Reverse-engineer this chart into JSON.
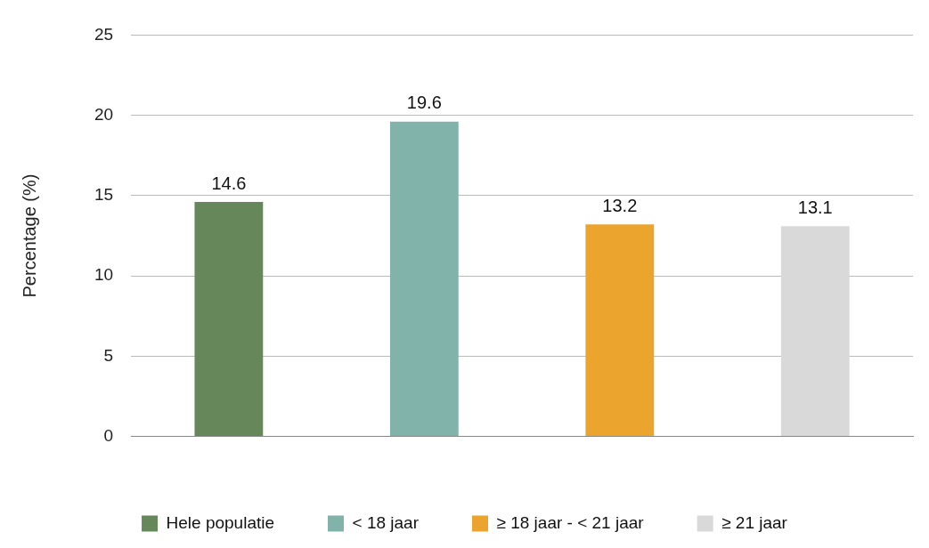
{
  "chart_data": {
    "type": "bar",
    "ylabel": "Percentage (%)",
    "categories": [
      null,
      null,
      null,
      null
    ],
    "series": [
      {
        "name": "Hele populatie",
        "color": "#66875a",
        "values": [
          14.6,
          null,
          null,
          null
        ]
      },
      {
        "name": "< 18 jaar",
        "color": "#82b3ab",
        "values": [
          null,
          19.6,
          null,
          null
        ]
      },
      {
        "name": "≥ 18 jaar - < 21 jaar",
        "color": "#eba52e",
        "values": [
          null,
          null,
          13.2,
          null
        ]
      },
      {
        "name": "≥ 21 jaar",
        "color": "#d9d9d9",
        "values": [
          null,
          null,
          null,
          13.1
        ]
      }
    ],
    "ylim": [
      0,
      25
    ],
    "yticks": [
      0,
      5,
      10,
      15,
      20,
      25
    ],
    "grid": "y",
    "legend": "bottom",
    "data_labels": true
  }
}
